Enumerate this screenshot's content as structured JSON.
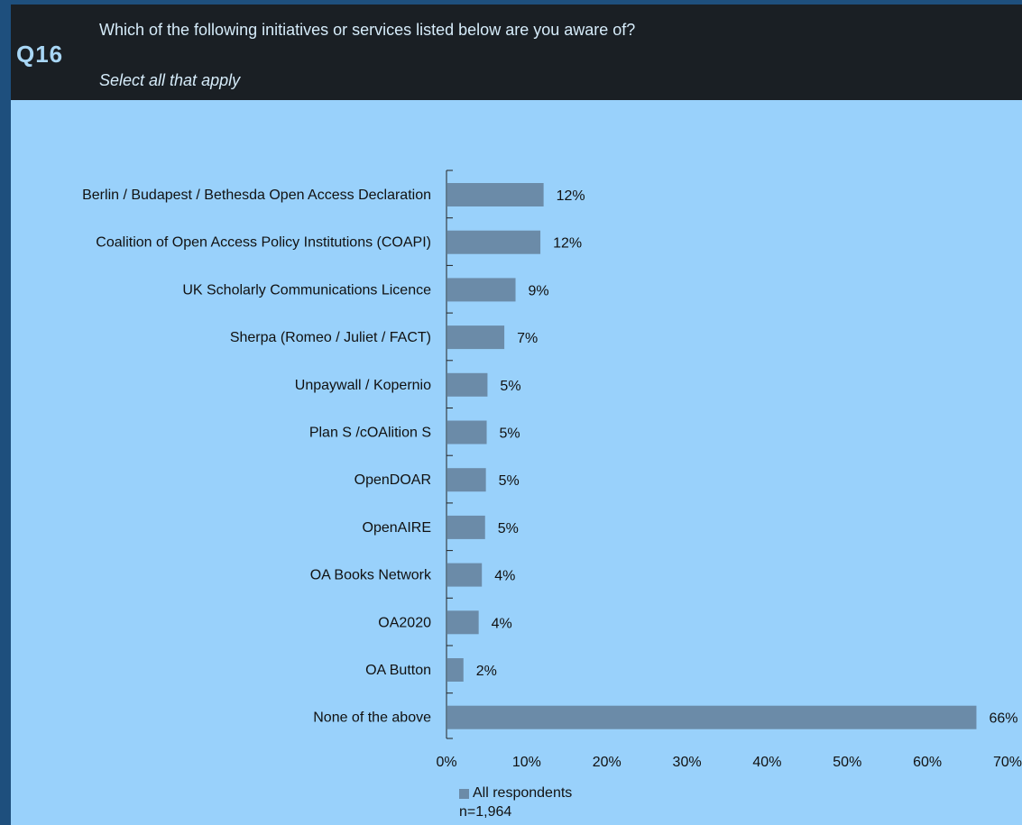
{
  "header": {
    "q_number": "Q16",
    "question": "Which of the following initiatives or services listed below are you aware of?",
    "instruction": "Select all that apply"
  },
  "colors": {
    "background": "#1e4f7d",
    "header_bg": "#1a1f24",
    "panel_bg": "#99d1fb",
    "bar": "#6b8ba8"
  },
  "chart_data": {
    "type": "bar",
    "orientation": "horizontal",
    "categories": [
      "Berlin / Budapest / Bethesda Open Access Declaration",
      "Coalition of Open Access Policy Institutions (COAPI)",
      "UK Scholarly Communications Licence",
      "Sherpa (Romeo / Juliet / FACT)",
      "Unpaywall / Kopernio",
      "Plan S /cOAlition S",
      "OpenDOAR",
      "OpenAIRE",
      "OA Books Network",
      "OA2020",
      "OA Button",
      "None of the above"
    ],
    "series": [
      {
        "name": "All respondents",
        "values": [
          12,
          12,
          9,
          7,
          5,
          5,
          5,
          5,
          4,
          4,
          2,
          66
        ],
        "labels": [
          "12%",
          "12%",
          "9%",
          "7%",
          "5%",
          "5%",
          "5%",
          "5%",
          "4%",
          "4%",
          "2%",
          "66%"
        ],
        "bar_values": [
          12.0,
          11.6,
          8.5,
          7.1,
          5.0,
          4.9,
          4.8,
          4.7,
          4.3,
          3.9,
          2.0,
          66.0
        ]
      }
    ],
    "xlim": [
      0,
      70
    ],
    "xticks": [
      "0%",
      "10%",
      "20%",
      "30%",
      "40%",
      "50%",
      "60%",
      "70%"
    ],
    "grid": false,
    "legend_position": "bottom"
  },
  "legend": {
    "label": "All respondents",
    "sample_size": "n=1,964"
  }
}
